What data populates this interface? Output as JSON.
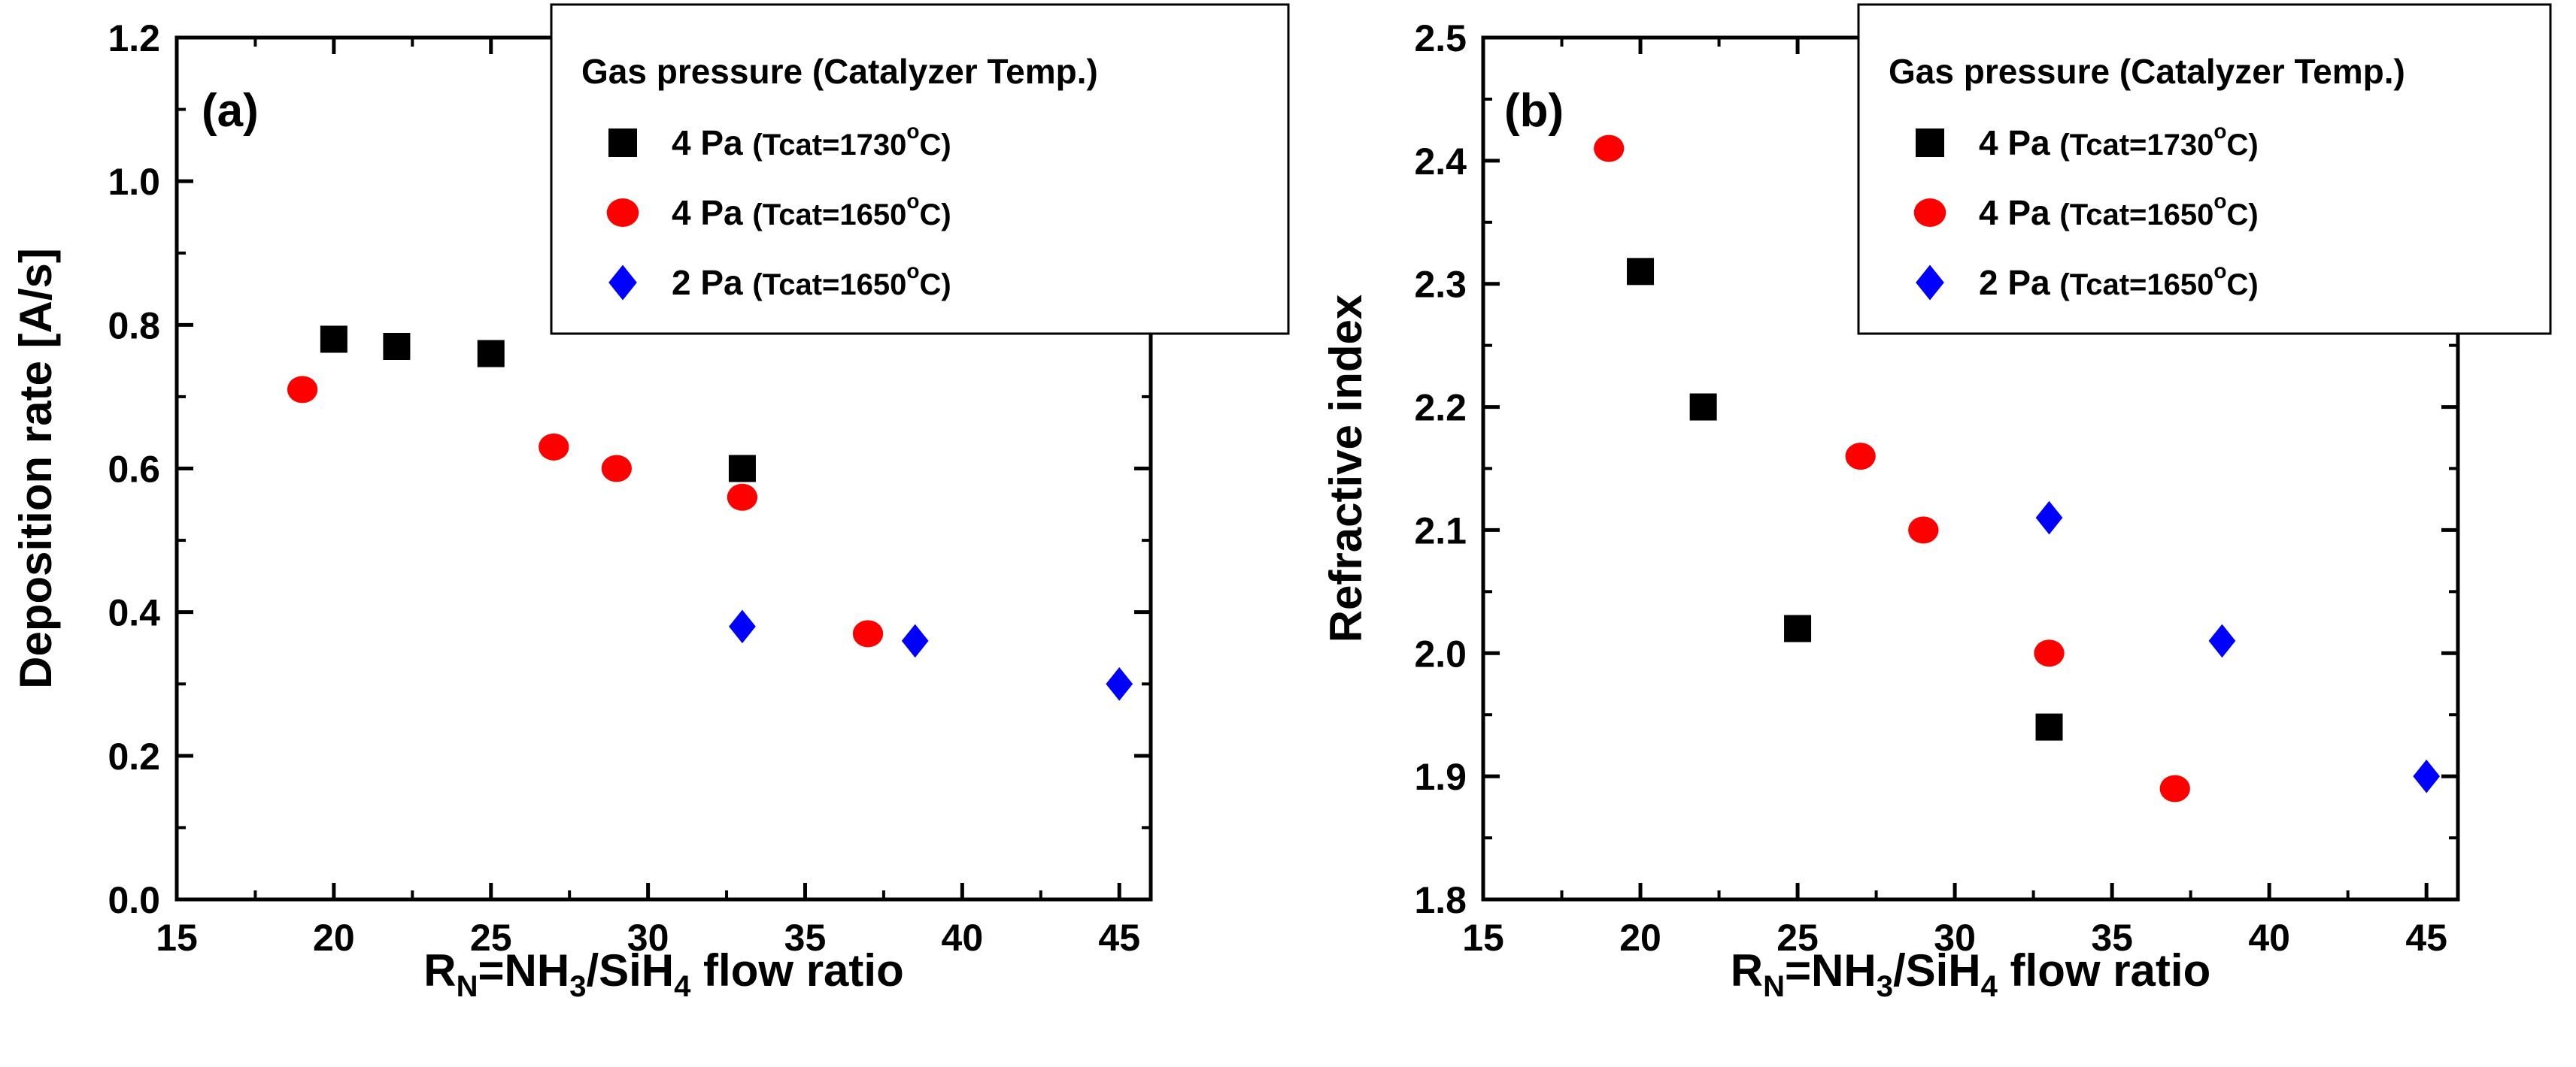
{
  "chart_data": [
    {
      "type": "scatter",
      "panel_label": "(a)",
      "xlabel_parts": [
        "R",
        "N",
        "=NH",
        "3",
        "/SiH",
        "4",
        " flow ratio"
      ],
      "ylabel": "Deposition rate  [A/s]",
      "xlim": [
        15,
        46
      ],
      "ylim": [
        0.0,
        1.2
      ],
      "xticks": [
        15,
        20,
        25,
        30,
        35,
        40,
        45
      ],
      "yticks": [
        "0.0",
        "0.2",
        "0.4",
        "0.6",
        "0.8",
        "1.0",
        "1.2"
      ],
      "legend": {
        "position": "top-right",
        "title": "Gas pressure (Catalyzer Temp.)"
      },
      "series": [
        {
          "name": "4 Pa (Tcat=1730°C)",
          "pressure": "4 Pa",
          "temp_text": "(Tcat=1730",
          "marker": "square",
          "color": "#000000",
          "x": [
            20,
            22,
            25,
            33
          ],
          "y": [
            0.78,
            0.77,
            0.76,
            0.6
          ]
        },
        {
          "name": "4 Pa (Tcat=1650°C)",
          "pressure": "4 Pa",
          "temp_text": "(Tcat=1650",
          "marker": "circle",
          "color": "#ff0000",
          "x": [
            19,
            27,
            29,
            33,
            37
          ],
          "y": [
            0.71,
            0.63,
            0.6,
            0.56,
            0.37
          ]
        },
        {
          "name": "2 Pa (Tcat=1650°C)",
          "pressure": "2 Pa",
          "temp_text": "(Tcat=1650",
          "marker": "diamond",
          "color": "#0000ff",
          "x": [
            33,
            38.5,
            45
          ],
          "y": [
            0.38,
            0.36,
            0.3
          ]
        }
      ]
    },
    {
      "type": "scatter",
      "panel_label": "(b)",
      "xlabel_parts": [
        "R",
        "N",
        "=NH",
        "3",
        "/SiH",
        "4",
        " flow ratio"
      ],
      "ylabel": "Refractive index",
      "xlim": [
        15,
        46
      ],
      "ylim": [
        1.8,
        2.5
      ],
      "xticks": [
        15,
        20,
        25,
        30,
        35,
        40,
        45
      ],
      "yticks": [
        "1.8",
        "1.9",
        "2.0",
        "2.1",
        "2.2",
        "2.3",
        "2.4",
        "2.5"
      ],
      "legend": {
        "position": "top-right",
        "title": "Gas pressure (Catalyzer Temp.)"
      },
      "series": [
        {
          "name": "4 Pa (Tcat=1730°C)",
          "pressure": "4 Pa",
          "temp_text": "(Tcat=1730",
          "marker": "square",
          "color": "#000000",
          "x": [
            20,
            22,
            25,
            33
          ],
          "y": [
            2.31,
            2.2,
            2.02,
            1.94
          ]
        },
        {
          "name": "4 Pa (Tcat=1650°C)",
          "pressure": "4 Pa",
          "temp_text": "(Tcat=1650",
          "marker": "circle",
          "color": "#ff0000",
          "x": [
            19,
            27,
            29,
            33,
            37
          ],
          "y": [
            2.41,
            2.16,
            2.1,
            2.0,
            1.89
          ]
        },
        {
          "name": "2 Pa (Tcat=1650°C)",
          "pressure": "2 Pa",
          "temp_text": "(Tcat=1650",
          "marker": "diamond",
          "color": "#0000ff",
          "x": [
            33,
            38.5,
            45
          ],
          "y": [
            2.11,
            2.01,
            1.9
          ]
        }
      ]
    }
  ],
  "degree_symbol": "o",
  "degree_unit": "C)"
}
